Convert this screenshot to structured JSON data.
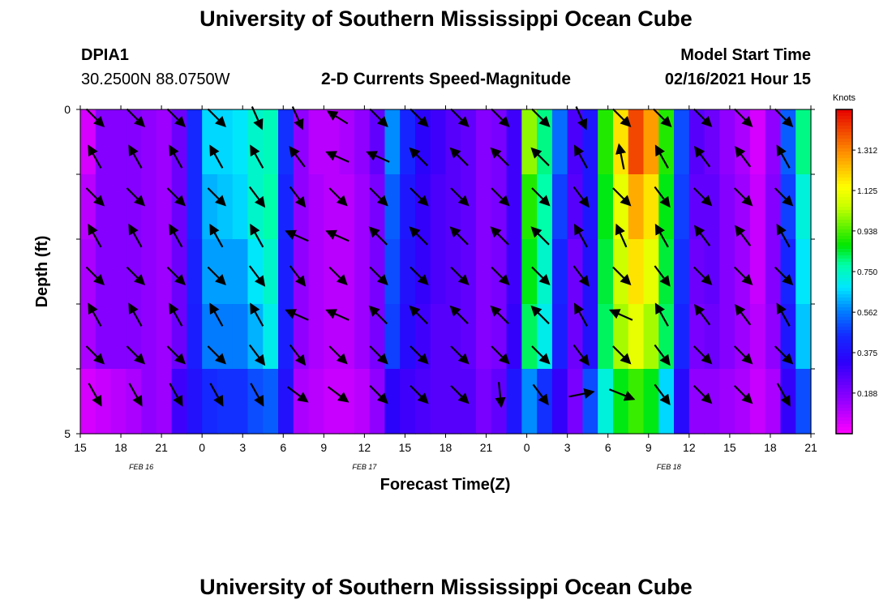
{
  "header": {
    "title": "University of Southern Mississippi Ocean Cube",
    "station": "DPIA1",
    "location": "30.2500N 88.0750W",
    "product": "2-D Currents Speed-Magnitude",
    "start_label": "Model Start Time",
    "start_value": "02/16/2021 Hour 15"
  },
  "footer": {
    "title": "University of Southern Mississippi Ocean Cube"
  },
  "chart_data": {
    "type": "heatmap",
    "xlabel": "Forecast Time(Z)",
    "ylabel": "Depth (ft)",
    "x_tick_labels": [
      "15",
      "18",
      "21",
      "0",
      "3",
      "6",
      "9",
      "12",
      "15",
      "18",
      "21",
      "0",
      "3",
      "6",
      "9",
      "12",
      "15",
      "18",
      "21"
    ],
    "date_labels": [
      {
        "label": "FEB 16",
        "at_tick": 1.5
      },
      {
        "label": "FEB 17",
        "at_tick": 7
      },
      {
        "label": "FEB 18",
        "at_tick": 14.5
      }
    ],
    "y_tick_labels": [
      "0",
      "5"
    ],
    "ylim": [
      0,
      5
    ],
    "x_hours": [
      0,
      54
    ],
    "depth_rows": 5,
    "colorbar": {
      "unit": "Knots",
      "range": [
        0,
        1.5
      ],
      "tick_labels": [
        "1.312",
        "1.125",
        "0.938",
        "0.750",
        "0.562",
        "0.375",
        "0.188"
      ],
      "tick_values": [
        1.312,
        1.125,
        0.938,
        0.75,
        0.562,
        0.375,
        0.188
      ]
    },
    "speed_knots": [
      [
        0.06,
        0.18,
        0.18,
        0.18,
        0.16,
        0.14,
        0.22,
        0.45,
        0.66,
        0.66,
        0.68,
        0.74,
        0.76,
        0.46,
        0.16,
        0.1,
        0.1,
        0.12,
        0.16,
        0.24,
        0.58,
        0.44,
        0.34,
        0.3,
        0.26,
        0.24,
        0.18,
        0.2,
        0.3,
        1.0,
        0.8,
        0.54,
        0.28,
        0.4,
        0.9,
        1.18,
        1.4,
        1.28,
        0.9,
        0.5,
        0.26,
        0.22,
        0.16,
        0.12,
        0.06,
        0.16,
        0.52,
        0.8
      ],
      [
        0.1,
        0.18,
        0.18,
        0.18,
        0.16,
        0.14,
        0.22,
        0.45,
        0.62,
        0.64,
        0.66,
        0.74,
        0.78,
        0.44,
        0.16,
        0.12,
        0.1,
        0.1,
        0.14,
        0.2,
        0.52,
        0.4,
        0.32,
        0.28,
        0.26,
        0.24,
        0.18,
        0.2,
        0.3,
        0.9,
        0.78,
        0.48,
        0.26,
        0.4,
        0.86,
        1.1,
        1.26,
        1.18,
        0.86,
        0.48,
        0.24,
        0.24,
        0.18,
        0.14,
        0.08,
        0.18,
        0.48,
        0.72
      ],
      [
        0.12,
        0.18,
        0.18,
        0.18,
        0.16,
        0.14,
        0.22,
        0.43,
        0.6,
        0.6,
        0.6,
        0.68,
        0.74,
        0.42,
        0.16,
        0.12,
        0.1,
        0.1,
        0.14,
        0.2,
        0.5,
        0.38,
        0.32,
        0.28,
        0.26,
        0.24,
        0.18,
        0.2,
        0.3,
        0.86,
        0.74,
        0.44,
        0.22,
        0.38,
        0.84,
        1.06,
        1.18,
        1.1,
        0.84,
        0.46,
        0.22,
        0.24,
        0.18,
        0.14,
        0.08,
        0.18,
        0.44,
        0.68
      ],
      [
        0.12,
        0.18,
        0.18,
        0.18,
        0.16,
        0.14,
        0.22,
        0.42,
        0.56,
        0.56,
        0.56,
        0.62,
        0.7,
        0.42,
        0.16,
        0.12,
        0.1,
        0.1,
        0.14,
        0.2,
        0.48,
        0.36,
        0.3,
        0.26,
        0.26,
        0.24,
        0.18,
        0.2,
        0.32,
        0.82,
        0.7,
        0.42,
        0.22,
        0.38,
        0.82,
        1.02,
        1.1,
        1.02,
        0.82,
        0.44,
        0.2,
        0.22,
        0.18,
        0.14,
        0.1,
        0.16,
        0.4,
        0.64
      ],
      [
        0.06,
        0.08,
        0.1,
        0.12,
        0.16,
        0.14,
        0.3,
        0.38,
        0.45,
        0.46,
        0.46,
        0.5,
        0.52,
        0.38,
        0.12,
        0.1,
        0.08,
        0.08,
        0.1,
        0.16,
        0.34,
        0.3,
        0.28,
        0.26,
        0.26,
        0.26,
        0.2,
        0.24,
        0.4,
        0.58,
        0.46,
        0.32,
        0.2,
        0.5,
        0.72,
        0.86,
        0.92,
        0.86,
        0.66,
        0.36,
        0.16,
        0.16,
        0.14,
        0.12,
        0.08,
        0.12,
        0.32,
        0.5
      ]
    ],
    "vectors_u_v": [
      [
        [
          0.7,
          0.7
        ],
        [
          0.7,
          0.7
        ],
        [
          0.7,
          0.7
        ],
        [
          0.7,
          0.7
        ],
        [
          0.4,
          0.9
        ],
        [
          0.4,
          0.9
        ],
        [
          -0.8,
          -0.5
        ],
        [
          0.7,
          0.7
        ],
        [
          0.7,
          0.7
        ],
        [
          0.7,
          0.7
        ],
        [
          0.7,
          0.7
        ],
        [
          0.7,
          0.7
        ],
        [
          0.4,
          0.9
        ],
        [
          0.7,
          0.7
        ],
        [
          0.7,
          0.7
        ],
        [
          0.7,
          0.7
        ],
        [
          0.7,
          0.7
        ],
        [
          0.7,
          0.7
        ]
      ],
      [
        [
          -0.5,
          -0.9
        ],
        [
          -0.5,
          -0.9
        ],
        [
          -0.5,
          -0.9
        ],
        [
          -0.5,
          -0.9
        ],
        [
          -0.5,
          -0.9
        ],
        [
          -0.6,
          -0.8
        ],
        [
          -0.9,
          -0.4
        ],
        [
          -0.9,
          -0.4
        ],
        [
          -0.7,
          -0.7
        ],
        [
          -0.7,
          -0.7
        ],
        [
          -0.7,
          -0.7
        ],
        [
          -0.7,
          -0.7
        ],
        [
          -0.5,
          -0.9
        ],
        [
          -0.2,
          -1
        ],
        [
          -0.5,
          -0.9
        ],
        [
          -0.6,
          -0.8
        ],
        [
          -0.6,
          -0.8
        ],
        [
          -0.5,
          -0.9
        ]
      ],
      [
        [
          0.7,
          0.7
        ],
        [
          0.7,
          0.7
        ],
        [
          0.7,
          0.7
        ],
        [
          0.7,
          0.7
        ],
        [
          0.6,
          0.8
        ],
        [
          0.6,
          0.8
        ],
        [
          0.7,
          0.7
        ],
        [
          0.7,
          0.7
        ],
        [
          0.7,
          0.7
        ],
        [
          0.7,
          0.7
        ],
        [
          0.7,
          0.7
        ],
        [
          0.7,
          0.7
        ],
        [
          0.6,
          0.8
        ],
        [
          0.7,
          0.7
        ],
        [
          0.6,
          0.8
        ],
        [
          0.7,
          0.7
        ],
        [
          0.7,
          0.7
        ],
        [
          0.7,
          0.7
        ]
      ],
      [
        [
          -0.5,
          -0.9
        ],
        [
          -0.5,
          -0.9
        ],
        [
          -0.5,
          -0.9
        ],
        [
          -0.5,
          -0.9
        ],
        [
          -0.5,
          -0.9
        ],
        [
          -0.9,
          -0.4
        ],
        [
          -0.9,
          -0.4
        ],
        [
          -0.7,
          -0.7
        ],
        [
          -0.7,
          -0.7
        ],
        [
          -0.7,
          -0.7
        ],
        [
          -0.7,
          -0.7
        ],
        [
          -0.7,
          -0.7
        ],
        [
          -0.5,
          -0.9
        ],
        [
          -0.4,
          -0.9
        ],
        [
          -0.5,
          -0.9
        ],
        [
          -0.6,
          -0.8
        ],
        [
          -0.6,
          -0.8
        ],
        [
          -0.5,
          -0.9
        ]
      ],
      [
        [
          0.7,
          0.7
        ],
        [
          0.7,
          0.7
        ],
        [
          0.7,
          0.7
        ],
        [
          0.7,
          0.7
        ],
        [
          0.6,
          0.8
        ],
        [
          0.6,
          0.8
        ],
        [
          0.7,
          0.7
        ],
        [
          0.7,
          0.7
        ],
        [
          0.7,
          0.7
        ],
        [
          0.7,
          0.7
        ],
        [
          0.7,
          0.7
        ],
        [
          0.7,
          0.7
        ],
        [
          0.6,
          0.8
        ],
        [
          0.7,
          0.7
        ],
        [
          0.6,
          0.8
        ],
        [
          0.7,
          0.7
        ],
        [
          0.7,
          0.7
        ],
        [
          0.7,
          0.7
        ]
      ],
      [
        [
          -0.5,
          -0.9
        ],
        [
          -0.5,
          -0.9
        ],
        [
          -0.5,
          -0.9
        ],
        [
          -0.5,
          -0.9
        ],
        [
          -0.5,
          -0.9
        ],
        [
          -0.9,
          -0.4
        ],
        [
          -0.9,
          -0.4
        ],
        [
          -0.7,
          -0.7
        ],
        [
          -0.7,
          -0.7
        ],
        [
          -0.7,
          -0.7
        ],
        [
          -0.7,
          -0.7
        ],
        [
          -0.7,
          -0.7
        ],
        [
          -0.5,
          -0.9
        ],
        [
          -0.9,
          -0.4
        ],
        [
          -0.5,
          -0.9
        ],
        [
          -0.6,
          -0.8
        ],
        [
          -0.6,
          -0.8
        ],
        [
          -0.5,
          -0.9
        ]
      ],
      [
        [
          0.7,
          0.7
        ],
        [
          0.7,
          0.7
        ],
        [
          0.7,
          0.7
        ],
        [
          0.7,
          0.7
        ],
        [
          0.6,
          0.8
        ],
        [
          0.6,
          0.8
        ],
        [
          0.7,
          0.7
        ],
        [
          0.7,
          0.7
        ],
        [
          0.7,
          0.7
        ],
        [
          0.7,
          0.7
        ],
        [
          0.7,
          0.7
        ],
        [
          0.7,
          0.7
        ],
        [
          0.6,
          0.8
        ],
        [
          0.7,
          0.7
        ],
        [
          0.6,
          0.8
        ],
        [
          0.7,
          0.7
        ],
        [
          0.7,
          0.7
        ],
        [
          0.7,
          0.7
        ]
      ],
      [
        [
          0.5,
          0.9
        ],
        [
          0.5,
          0.9
        ],
        [
          0.5,
          0.9
        ],
        [
          0.5,
          0.9
        ],
        [
          0.5,
          0.9
        ],
        [
          0.8,
          0.6
        ],
        [
          0.8,
          0.6
        ],
        [
          0.7,
          0.7
        ],
        [
          0.7,
          0.7
        ],
        [
          0.7,
          0.7
        ],
        [
          0.1,
          1
        ],
        [
          0.6,
          0.8
        ],
        [
          1,
          -0.2
        ],
        [
          1,
          0.4
        ],
        [
          0.6,
          0.8
        ],
        [
          0.7,
          0.7
        ],
        [
          0.7,
          0.7
        ],
        [
          0.5,
          0.9
        ]
      ]
    ]
  }
}
